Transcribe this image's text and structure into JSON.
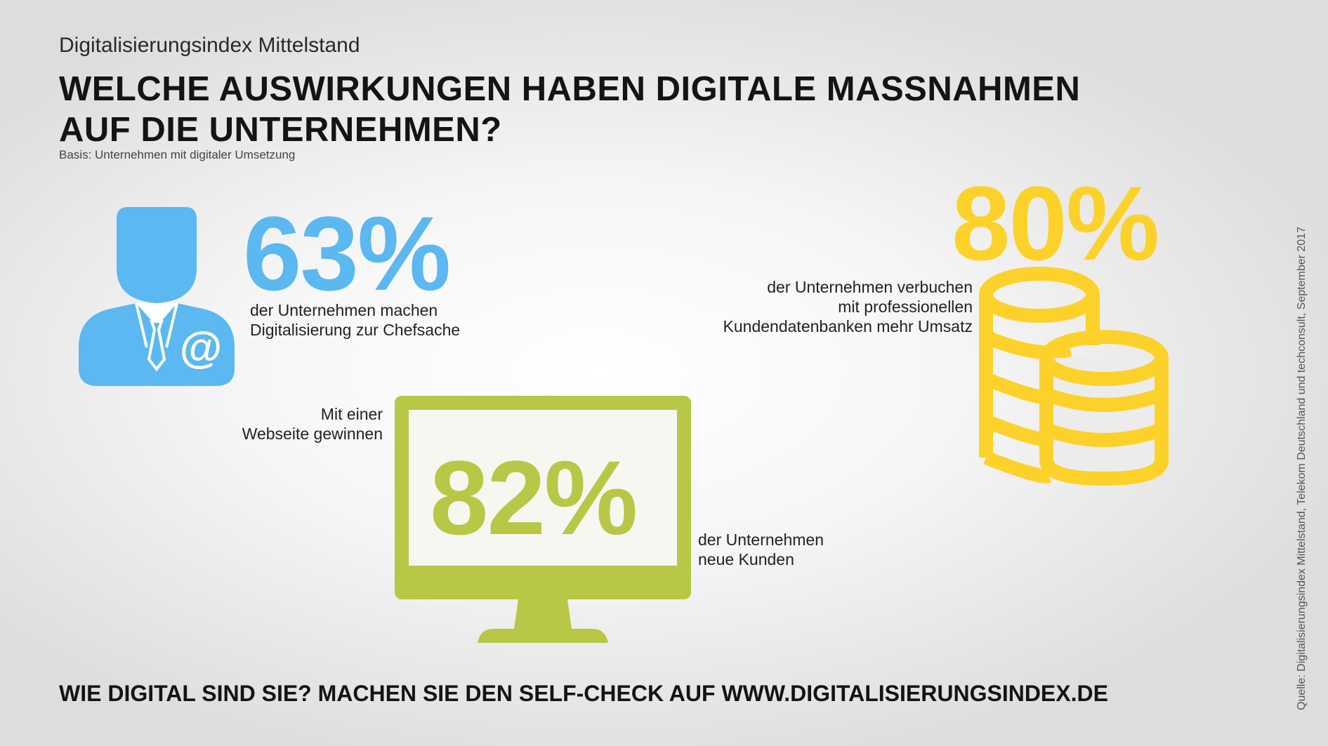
{
  "header": {
    "subtitle": "Digitalisierungsindex Mittelstand",
    "headline_line1": "WELCHE AUSWIRKUNGEN HABEN DIGITALE MASSNAHMEN",
    "headline_line2": "AUF DIE UNTERNEHMEN?",
    "basis": "Basis: Unternehmen mit digitaler Umsetzung"
  },
  "stats": {
    "chefsache": {
      "value": "63%",
      "line1": "der Unternehmen machen",
      "line2": "Digitalisierung zur Chefsache",
      "color": "#5bb8f0",
      "icon": "businessman-email-icon",
      "icon_symbol": "@"
    },
    "webseite": {
      "pre_line1": "Mit einer",
      "pre_line2": "Webseite gewinnen",
      "value": "82%",
      "line1": "der Unternehmen",
      "line2": "neue Kunden",
      "color": "#b8c745",
      "icon": "monitor-icon"
    },
    "umsatz": {
      "value": "80%",
      "line1": "der Unternehmen verbuchen",
      "line2": "mit professionellen",
      "line3": "Kundendatenbanken mehr Umsatz",
      "color": "#fcd22a",
      "icon": "coin-stacks-icon"
    }
  },
  "footer": {
    "cta": "WIE DIGITAL SIND SIE? MACHEN SIE DEN SELF-CHECK AUF WWW.DIGITALISIERUNGSINDEX.DE",
    "source": "Quelle: Digitalisierungsindex Mittelstand, Telekom Deutschland und techconsult, September 2017"
  }
}
